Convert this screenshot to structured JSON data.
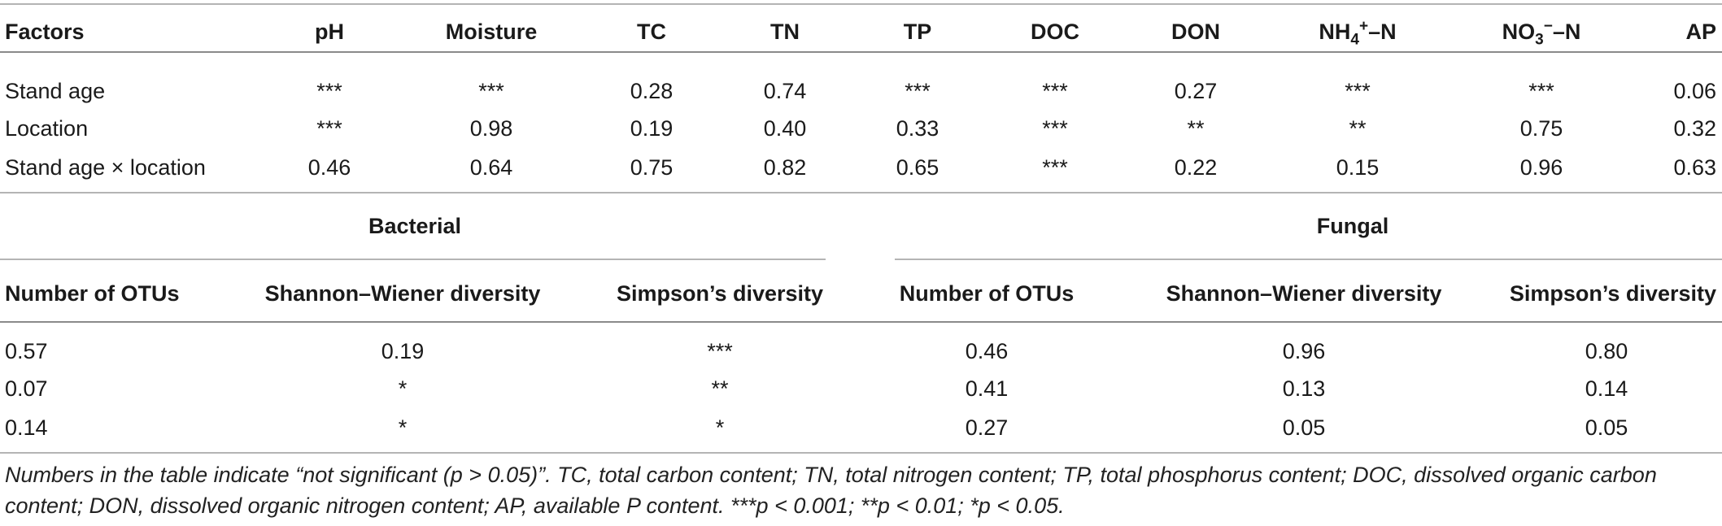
{
  "top_table": {
    "headers": {
      "factors": "Factors",
      "ph": "pH",
      "moisture": "Moisture",
      "tc": "TC",
      "tn": "TN",
      "tp": "TP",
      "doc": "DOC",
      "don": "DON",
      "nh4_base": "NH",
      "nh4_sub": "4",
      "nh4_sup": "+",
      "nh4_tail": "–N",
      "no3_base": "NO",
      "no3_sub": "3",
      "no3_sup": "−",
      "no3_tail": "–N",
      "ap": "AP"
    },
    "rows": [
      {
        "factor": "Stand age",
        "ph": "***",
        "moisture": "***",
        "tc": "0.28",
        "tn": "0.74",
        "tp": "***",
        "doc": "***",
        "don": "0.27",
        "nh4": "***",
        "no3": "***",
        "ap": "0.06"
      },
      {
        "factor": "Location",
        "ph": "***",
        "moisture": "0.98",
        "tc": "0.19",
        "tn": "0.40",
        "tp": "0.33",
        "doc": "***",
        "don": "**",
        "nh4": "**",
        "no3": "0.75",
        "ap": "0.32"
      },
      {
        "factor": "Stand age × location",
        "ph": "0.46",
        "moisture": "0.64",
        "tc": "0.75",
        "tn": "0.82",
        "tp": "0.65",
        "doc": "***",
        "don": "0.22",
        "nh4": "0.15",
        "no3": "0.96",
        "ap": "0.63"
      }
    ]
  },
  "bottom_table": {
    "group_bacterial": "Bacterial",
    "group_fungal": "Fungal",
    "headers": {
      "b_otus": "Number of OTUs",
      "b_shannon": "Shannon–Wiener diversity",
      "b_simpson": "Simpson’s diversity",
      "f_otus": "Number of OTUs",
      "f_shannon": "Shannon–Wiener diversity",
      "f_simpson": "Simpson’s diversity"
    },
    "rows": [
      {
        "b_otus": "0.57",
        "b_shannon": "0.19",
        "b_simpson": "***",
        "f_otus": "0.46",
        "f_shannon": "0.96",
        "f_simpson": "0.80"
      },
      {
        "b_otus": "0.07",
        "b_shannon": "*",
        "b_simpson": "**",
        "f_otus": "0.41",
        "f_shannon": "0.13",
        "f_simpson": "0.14"
      },
      {
        "b_otus": "0.14",
        "b_shannon": "*",
        "b_simpson": "*",
        "f_otus": "0.27",
        "f_shannon": "0.05",
        "f_simpson": "0.05"
      }
    ]
  },
  "footnote": "Numbers in the table indicate “not significant (p > 0.05)”. TC, total carbon content; TN, total nitrogen content; TP, total phosphorus content; DOC, dissolved organic carbon content; DON, dissolved organic nitrogen content; AP, available P content. ***p < 0.001; **p < 0.01; *p < 0.05."
}
